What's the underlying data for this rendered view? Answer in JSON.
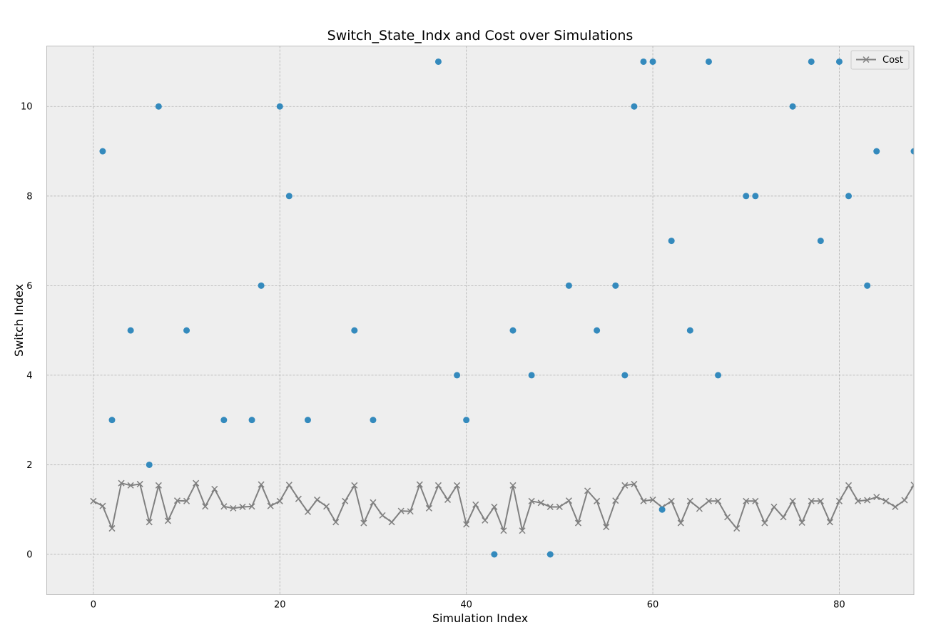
{
  "chart_data": {
    "type": "scatter",
    "title": "Switch_State_Indx and Cost over Simulations",
    "xlabel": "Simulation Index",
    "ylabel": "Switch Index",
    "xlim": [
      -5,
      88
    ],
    "ylim": [
      -0.9,
      11.35
    ],
    "xticks": [
      0,
      20,
      40,
      60,
      80
    ],
    "yticks": [
      0,
      2,
      4,
      6,
      8,
      10
    ],
    "grid": true,
    "legend_position": "top-right",
    "colors": {
      "plot_background": "#eeeeee",
      "grid": "#b0b0b0",
      "scatter": "#348abd",
      "cost_line": "#808080"
    },
    "series": [
      {
        "kind": "scatter",
        "points": [
          [
            1,
            9
          ],
          [
            2,
            3
          ],
          [
            4,
            5
          ],
          [
            6,
            2
          ],
          [
            7,
            10
          ],
          [
            10,
            5
          ],
          [
            14,
            3
          ],
          [
            17,
            3
          ],
          [
            18,
            6
          ],
          [
            20,
            10
          ],
          [
            21,
            8
          ],
          [
            23,
            3
          ],
          [
            28,
            5
          ],
          [
            30,
            3
          ],
          [
            37,
            11
          ],
          [
            39,
            4
          ],
          [
            40,
            3
          ],
          [
            43,
            0
          ],
          [
            45,
            5
          ],
          [
            47,
            4
          ],
          [
            49,
            0
          ],
          [
            51,
            6
          ],
          [
            54,
            5
          ],
          [
            56,
            6
          ],
          [
            57,
            4
          ],
          [
            58,
            10
          ],
          [
            59,
            11
          ],
          [
            60,
            11
          ],
          [
            61,
            1
          ],
          [
            62,
            7
          ],
          [
            64,
            5
          ],
          [
            66,
            11
          ],
          [
            67,
            4
          ],
          [
            70,
            8
          ],
          [
            71,
            8
          ],
          [
            75,
            10
          ],
          [
            77,
            11
          ],
          [
            78,
            7
          ],
          [
            80,
            11
          ],
          [
            81,
            8
          ],
          [
            83,
            6
          ],
          [
            84,
            9
          ],
          [
            88,
            9
          ]
        ]
      },
      {
        "kind": "line",
        "name": "Cost",
        "marker": "x",
        "x_start": 0,
        "values": [
          1.19,
          1.08,
          0.58,
          1.59,
          1.54,
          1.57,
          0.72,
          1.54,
          0.75,
          1.2,
          1.19,
          1.59,
          1.07,
          1.46,
          1.07,
          1.03,
          1.06,
          1.07,
          1.56,
          1.08,
          1.19,
          1.55,
          1.24,
          0.95,
          1.22,
          1.07,
          0.72,
          1.19,
          1.54,
          0.7,
          1.16,
          0.87,
          0.72,
          0.97,
          0.96,
          1.56,
          1.03,
          1.54,
          1.22,
          1.54,
          0.67,
          1.11,
          0.76,
          1.06,
          0.53,
          1.54,
          0.53,
          1.19,
          1.15,
          1.06,
          1.06,
          1.2,
          0.7,
          1.42,
          1.19,
          0.61,
          1.2,
          1.54,
          1.57,
          1.19,
          1.22,
          1.05,
          1.19,
          0.7,
          1.19,
          1.02,
          1.19,
          1.19,
          0.83,
          0.58,
          1.19,
          1.19,
          0.7,
          1.06,
          0.83,
          1.19,
          0.71,
          1.19,
          1.19,
          0.72,
          1.19,
          1.54,
          1.19,
          1.21,
          1.28,
          1.19,
          1.06,
          1.21,
          1.55
        ]
      }
    ]
  }
}
